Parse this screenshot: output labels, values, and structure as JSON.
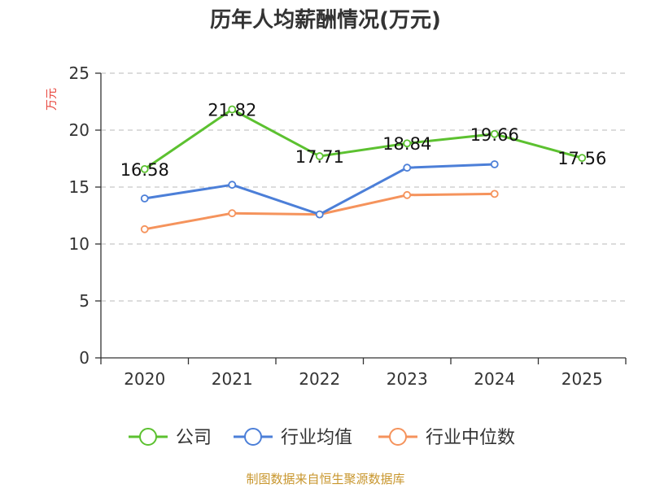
{
  "chart_data": {
    "type": "line",
    "title": "历年人均薪酬情况(万元)",
    "ylabel": "万元",
    "xlabel": "",
    "ylim": [
      0,
      25
    ],
    "yticks": [
      0,
      5,
      10,
      15,
      20,
      25
    ],
    "categories": [
      "2020",
      "2021",
      "2022",
      "2023",
      "2024",
      "2025"
    ],
    "grid": true,
    "legend_position": "bottom",
    "series": [
      {
        "name": "公司",
        "color": "#5cc130",
        "values": [
          16.58,
          21.82,
          17.71,
          18.84,
          19.66,
          17.56
        ],
        "labels": [
          "16.58",
          "21.82",
          "17.71",
          "18.84",
          "19.66",
          "17.56"
        ]
      },
      {
        "name": "行业均值",
        "color": "#4c7fd8",
        "values": [
          14.0,
          15.2,
          12.6,
          16.7,
          17.0,
          null
        ]
      },
      {
        "name": "行业中位数",
        "color": "#f5935c",
        "values": [
          11.3,
          12.7,
          12.6,
          14.3,
          14.4,
          null
        ]
      }
    ]
  },
  "footer": {
    "source": "制图数据来自恒生聚源数据库"
  }
}
